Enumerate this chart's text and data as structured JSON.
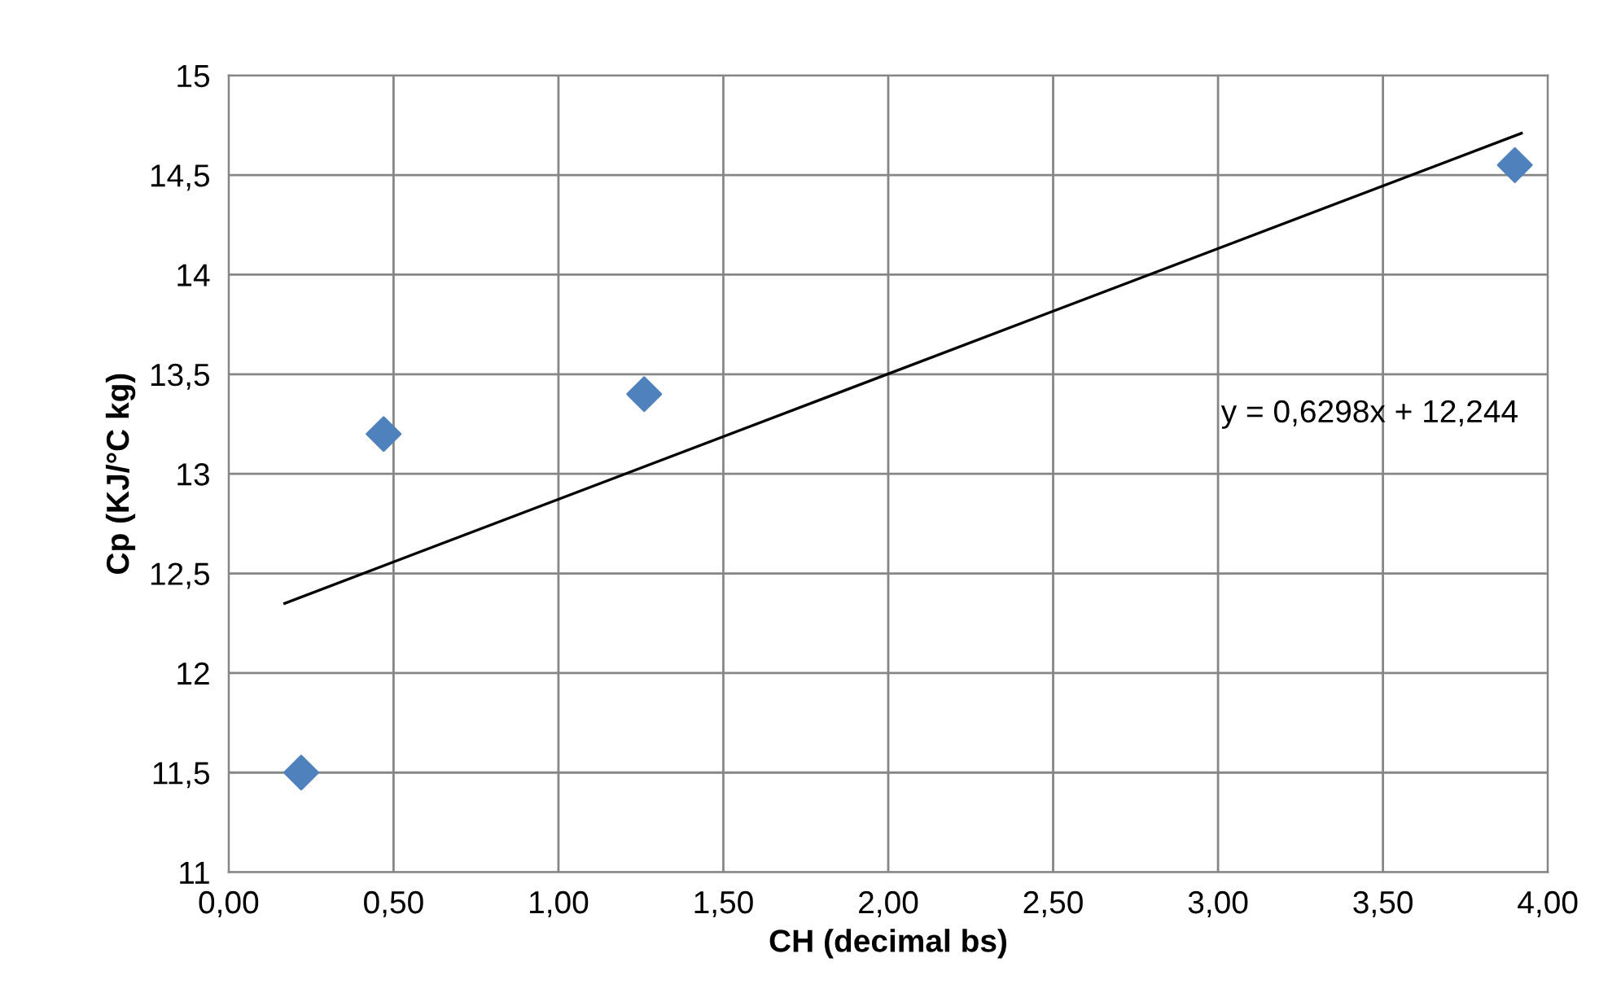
{
  "chart_data": {
    "type": "scatter",
    "xlabel": "CH (decimal bs)",
    "ylabel": "Cp (KJ/°C kg)",
    "x": [
      0.22,
      0.47,
      1.26,
      3.9
    ],
    "series": [
      {
        "color": "#4f81bd",
        "marker": "diamond",
        "values": [
          11.5,
          13.2,
          13.4,
          14.55
        ]
      },
      {
        "type": "line",
        "color": "#000000",
        "marker": "none",
        "x": [
          0.17,
          3.92
        ],
        "values": [
          12.35,
          14.71
        ]
      }
    ],
    "annotations": [
      "y = 0,6298x + 12,244"
    ],
    "xlim": [
      0,
      4
    ],
    "ylim": [
      11,
      15
    ],
    "xticks": [
      {
        "value": 0,
        "label": "0,00"
      },
      {
        "value": 0.5,
        "label": "0,50"
      },
      {
        "value": 1,
        "label": "1,00"
      },
      {
        "value": 1.5,
        "label": "1,50"
      },
      {
        "value": 2,
        "label": "2,00"
      },
      {
        "value": 2.5,
        "label": "2,50"
      },
      {
        "value": 3,
        "label": "3,00"
      },
      {
        "value": 3.5,
        "label": "3,50"
      },
      {
        "value": 4,
        "label": "4,00"
      }
    ],
    "yticks": [
      11,
      {
        "value": 11.5,
        "label": "11,5"
      },
      12,
      {
        "value": 12.5,
        "label": "12,5"
      },
      13,
      {
        "value": 13.5,
        "label": "13,5"
      },
      14,
      {
        "value": 14.5,
        "label": "14,5"
      },
      15
    ],
    "grid": true,
    "legend": false
  }
}
